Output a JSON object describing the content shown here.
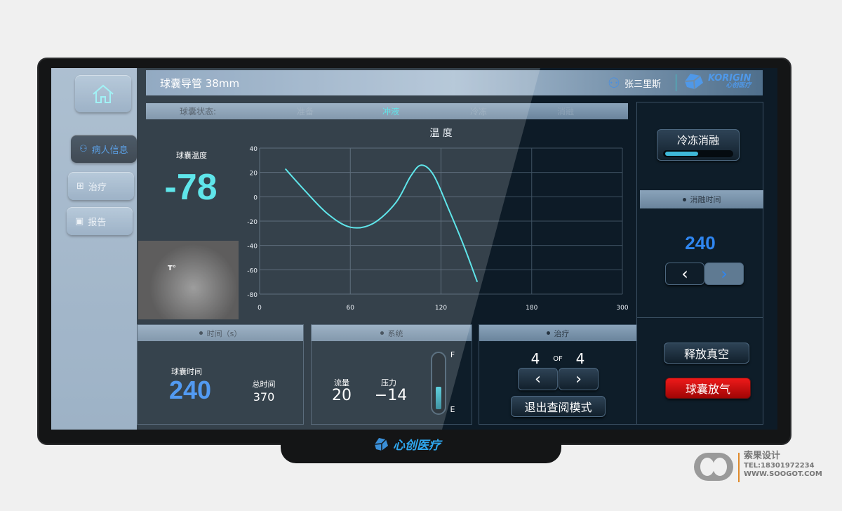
{
  "header": {
    "title": "球囊导管 38mm",
    "user": "张三里斯",
    "brand_en": "KORIGIN",
    "brand_cn": "心创医疗"
  },
  "sidebar": {
    "items": [
      {
        "label": "病人信息",
        "active": true
      },
      {
        "label": "治疗"
      },
      {
        "label": "报告"
      }
    ]
  },
  "status": {
    "label": "球囊状态:",
    "stages": [
      "准备",
      "冲液",
      "冷冻",
      "消融"
    ],
    "active_stage": "冲液"
  },
  "temperature": {
    "label": "球囊温度",
    "value": "-78",
    "image_label": "T°"
  },
  "chart_data": {
    "type": "line",
    "title": "温 度",
    "x_tick_labels": [
      "0",
      "60",
      "120",
      "180",
      "300"
    ],
    "y_ticks": [
      40,
      20,
      0,
      -20,
      -40,
      -60,
      -80
    ],
    "ylim": [
      -80,
      40
    ],
    "grid": true,
    "color": "#3fe0e6",
    "series": [
      {
        "points": [
          [
            17,
            23
          ],
          [
            30,
            5
          ],
          [
            45,
            -14
          ],
          [
            60,
            -25
          ],
          [
            75,
            -22
          ],
          [
            90,
            -5
          ],
          [
            100,
            17
          ],
          [
            107,
            26
          ],
          [
            115,
            18
          ],
          [
            125,
            -10
          ],
          [
            135,
            -40
          ],
          [
            144,
            -70
          ]
        ]
      }
    ]
  },
  "time_panel": {
    "header": "时间（s）",
    "balloon_time_label": "球囊时间",
    "balloon_time": "240",
    "total_label": "总时间",
    "total": "370"
  },
  "system_panel": {
    "header": "系统",
    "flow_label": "流量",
    "flow": "20",
    "pressure_label": "压力",
    "pressure": "−14",
    "gauge_top": "F",
    "gauge_bottom": "E",
    "gauge_level": 0.45
  },
  "treatment_panel": {
    "header": "治疗",
    "current": "4",
    "of": "OF",
    "total": "4",
    "exit_label": "退出查阅模式"
  },
  "right_panel": {
    "cryo_label": "冷冻消融",
    "cryo_progress": 0.5,
    "ablation_header": "消融时间",
    "ablation_time": "240",
    "release_vacuum": "释放真空",
    "deflate": "球囊放气"
  },
  "device": {
    "bezel_brand": "心创医疗"
  },
  "watermark": {
    "name": "索果设计",
    "tel": "TEL:18301972234",
    "url": "WWW.SOOGOT.COM"
  },
  "colors": {
    "accent_cyan": "#3fe0e6",
    "accent_blue": "#2f86f0",
    "danger": "#d40f0f"
  }
}
